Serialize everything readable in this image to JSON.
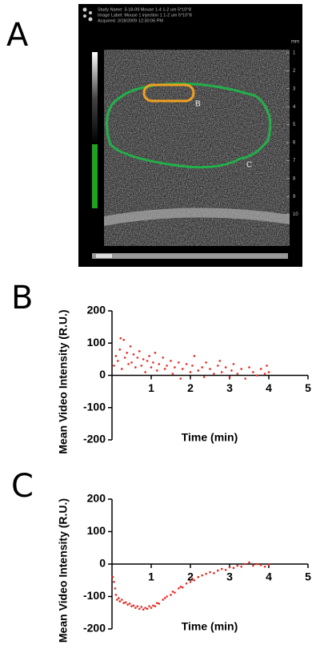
{
  "image_panel": {
    "panel_label": "A",
    "header": [
      "Study Name:  3-18-09 Mouse 1-4 1-2 um 5*10^8",
      "Image Label:  Mouse 1 injection 1 1-2 um 5*10^8",
      "Acquired:  3/18/2009 12:30:06 PM"
    ],
    "depth_unit": "mm",
    "depth_labels": [
      "1",
      "2",
      "3",
      "4",
      "5",
      "6",
      "7",
      "8",
      "9",
      "10"
    ],
    "roi_labels": [
      "B",
      "C"
    ]
  },
  "chart_data": [
    {
      "type": "scatter",
      "panel_label": "B",
      "x_label": "Time (min)",
      "y_label": "Mean Video Intensity (R.U.)",
      "color": "#e8271f",
      "x": [
        0.05,
        0.1,
        0.15,
        0.2,
        0.22,
        0.25,
        0.3,
        0.33,
        0.38,
        0.42,
        0.47,
        0.5,
        0.55,
        0.6,
        0.65,
        0.7,
        0.75,
        0.8,
        0.85,
        0.9,
        0.95,
        1.0,
        1.05,
        1.1,
        1.15,
        1.2,
        1.3,
        1.35,
        1.4,
        1.5,
        1.55,
        1.6,
        1.7,
        1.75,
        1.8,
        1.9,
        2.0,
        2.05,
        2.1,
        2.2,
        2.3,
        2.35,
        2.4,
        2.5,
        2.6,
        2.7,
        2.75,
        2.8,
        2.9,
        3.0,
        3.05,
        3.1,
        3.2,
        3.3,
        3.4,
        3.5,
        3.6,
        3.7,
        3.8,
        3.9,
        3.95,
        4.0
      ],
      "values": [
        30,
        60,
        45,
        80,
        115,
        20,
        110,
        55,
        70,
        35,
        90,
        40,
        65,
        25,
        55,
        75,
        30,
        50,
        10,
        45,
        60,
        25,
        40,
        70,
        15,
        35,
        55,
        20,
        30,
        45,
        5,
        25,
        40,
        -10,
        20,
        35,
        10,
        30,
        60,
        15,
        25,
        -5,
        40,
        20,
        5,
        30,
        45,
        10,
        25,
        -5,
        15,
        35,
        5,
        20,
        -10,
        25,
        10,
        0,
        20,
        5,
        30,
        10
      ],
      "xlim": [
        0,
        5
      ],
      "xticks": [
        1,
        2,
        3,
        4,
        5
      ],
      "ylim": [
        -200,
        200
      ],
      "yticks": [
        -200,
        -100,
        0,
        100,
        200
      ]
    },
    {
      "type": "scatter",
      "panel_label": "C",
      "x_label": "Time (min)",
      "y_label": "Mean Video Intensity (R.U.)",
      "color": "#e8271f",
      "x": [
        0.02,
        0.05,
        0.08,
        0.1,
        0.13,
        0.17,
        0.2,
        0.25,
        0.3,
        0.35,
        0.4,
        0.45,
        0.5,
        0.55,
        0.6,
        0.65,
        0.7,
        0.75,
        0.8,
        0.85,
        0.9,
        0.95,
        1.0,
        1.05,
        1.1,
        1.15,
        1.2,
        1.3,
        1.35,
        1.4,
        1.5,
        1.55,
        1.6,
        1.7,
        1.75,
        1.8,
        1.9,
        2.0,
        2.05,
        2.1,
        2.2,
        2.3,
        2.4,
        2.5,
        2.6,
        2.7,
        2.8,
        2.9,
        3.0,
        3.1,
        3.2,
        3.3,
        3.4,
        3.5,
        3.6,
        3.7,
        3.8,
        3.9,
        4.0
      ],
      "values": [
        -40,
        -55,
        -75,
        -95,
        -110,
        -105,
        -115,
        -110,
        -120,
        -118,
        -125,
        -122,
        -130,
        -128,
        -135,
        -130,
        -138,
        -132,
        -140,
        -135,
        -138,
        -130,
        -135,
        -128,
        -130,
        -120,
        -122,
        -110,
        -105,
        -100,
        -95,
        -85,
        -88,
        -75,
        -70,
        -72,
        -60,
        -55,
        -45,
        -50,
        -40,
        -35,
        -30,
        -25,
        -28,
        -20,
        -15,
        -18,
        -10,
        -12,
        -5,
        -8,
        0,
        5,
        -5,
        0,
        -3,
        -8,
        -2
      ],
      "xlim": [
        0,
        5
      ],
      "xticks": [
        1,
        2,
        3,
        4,
        5
      ],
      "ylim": [
        -200,
        200
      ],
      "yticks": [
        -200,
        -100,
        0,
        100,
        200
      ]
    }
  ]
}
